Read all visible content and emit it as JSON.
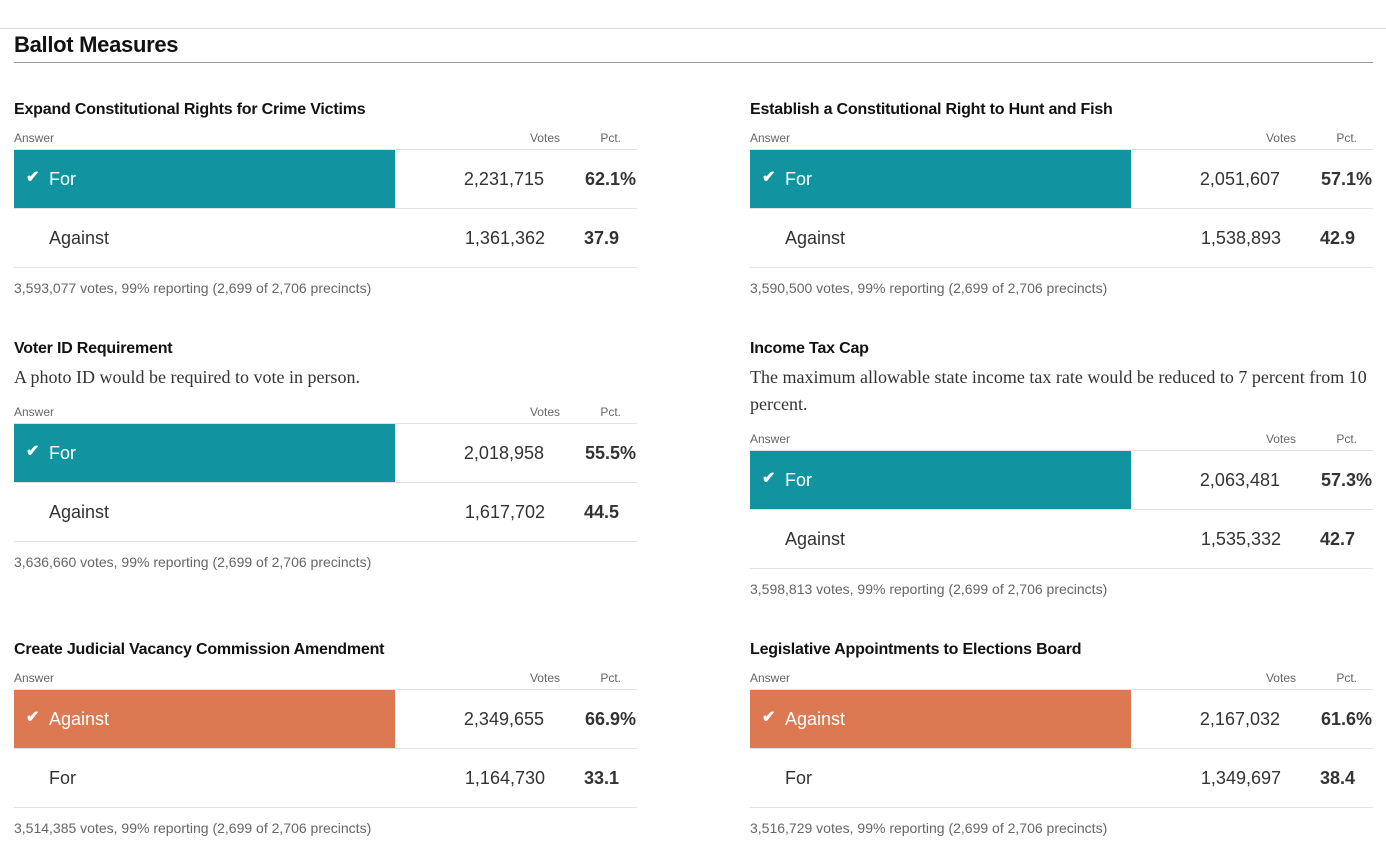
{
  "page_title": "Ballot Measures",
  "colors": {
    "for_winner": "#1193a0",
    "against_winner": "#dc7852"
  },
  "columns": {
    "answer": "Answer",
    "votes": "Votes",
    "pct": "Pct."
  },
  "measures": [
    {
      "title": "Expand Constitutional Rights for Crime Victims",
      "description": "",
      "winner_color": "#1193a0",
      "rows": [
        {
          "answer": "For",
          "votes": "2,231,715",
          "pct": "62.1%",
          "winner": true
        },
        {
          "answer": "Against",
          "votes": "1,361,362",
          "pct": "37.9",
          "winner": false
        }
      ],
      "footer": "3,593,077 votes, 99% reporting (2,699 of 2,706 precincts)"
    },
    {
      "title": "Establish a Constitutional Right to Hunt and Fish",
      "description": "",
      "winner_color": "#1193a0",
      "rows": [
        {
          "answer": "For",
          "votes": "2,051,607",
          "pct": "57.1%",
          "winner": true
        },
        {
          "answer": "Against",
          "votes": "1,538,893",
          "pct": "42.9",
          "winner": false
        }
      ],
      "footer": "3,590,500 votes, 99% reporting (2,699 of 2,706 precincts)"
    },
    {
      "title": "Voter ID Requirement",
      "description": "A photo ID would be required to vote in person.",
      "winner_color": "#1193a0",
      "rows": [
        {
          "answer": "For",
          "votes": "2,018,958",
          "pct": "55.5%",
          "winner": true
        },
        {
          "answer": "Against",
          "votes": "1,617,702",
          "pct": "44.5",
          "winner": false
        }
      ],
      "footer": "3,636,660 votes, 99% reporting (2,699 of 2,706 precincts)"
    },
    {
      "title": "Income Tax Cap",
      "description": "The maximum allowable state income tax rate would be reduced to 7 percent from 10 percent.",
      "winner_color": "#1193a0",
      "rows": [
        {
          "answer": "For",
          "votes": "2,063,481",
          "pct": "57.3%",
          "winner": true
        },
        {
          "answer": "Against",
          "votes": "1,535,332",
          "pct": "42.7",
          "winner": false
        }
      ],
      "footer": "3,598,813 votes, 99% reporting (2,699 of 2,706 precincts)"
    },
    {
      "title": "Create Judicial Vacancy Commission Amendment",
      "description": "",
      "winner_color": "#dc7852",
      "rows": [
        {
          "answer": "Against",
          "votes": "2,349,655",
          "pct": "66.9%",
          "winner": true
        },
        {
          "answer": "For",
          "votes": "1,164,730",
          "pct": "33.1",
          "winner": false
        }
      ],
      "footer": "3,514,385 votes, 99% reporting (2,699 of 2,706 precincts)"
    },
    {
      "title": "Legislative Appointments to Elections Board",
      "description": "",
      "winner_color": "#dc7852",
      "rows": [
        {
          "answer": "Against",
          "votes": "2,167,032",
          "pct": "61.6%",
          "winner": true
        },
        {
          "answer": "For",
          "votes": "1,349,697",
          "pct": "38.4",
          "winner": false
        }
      ],
      "footer": "3,516,729 votes, 99% reporting (2,699 of 2,706 precincts)"
    }
  ]
}
